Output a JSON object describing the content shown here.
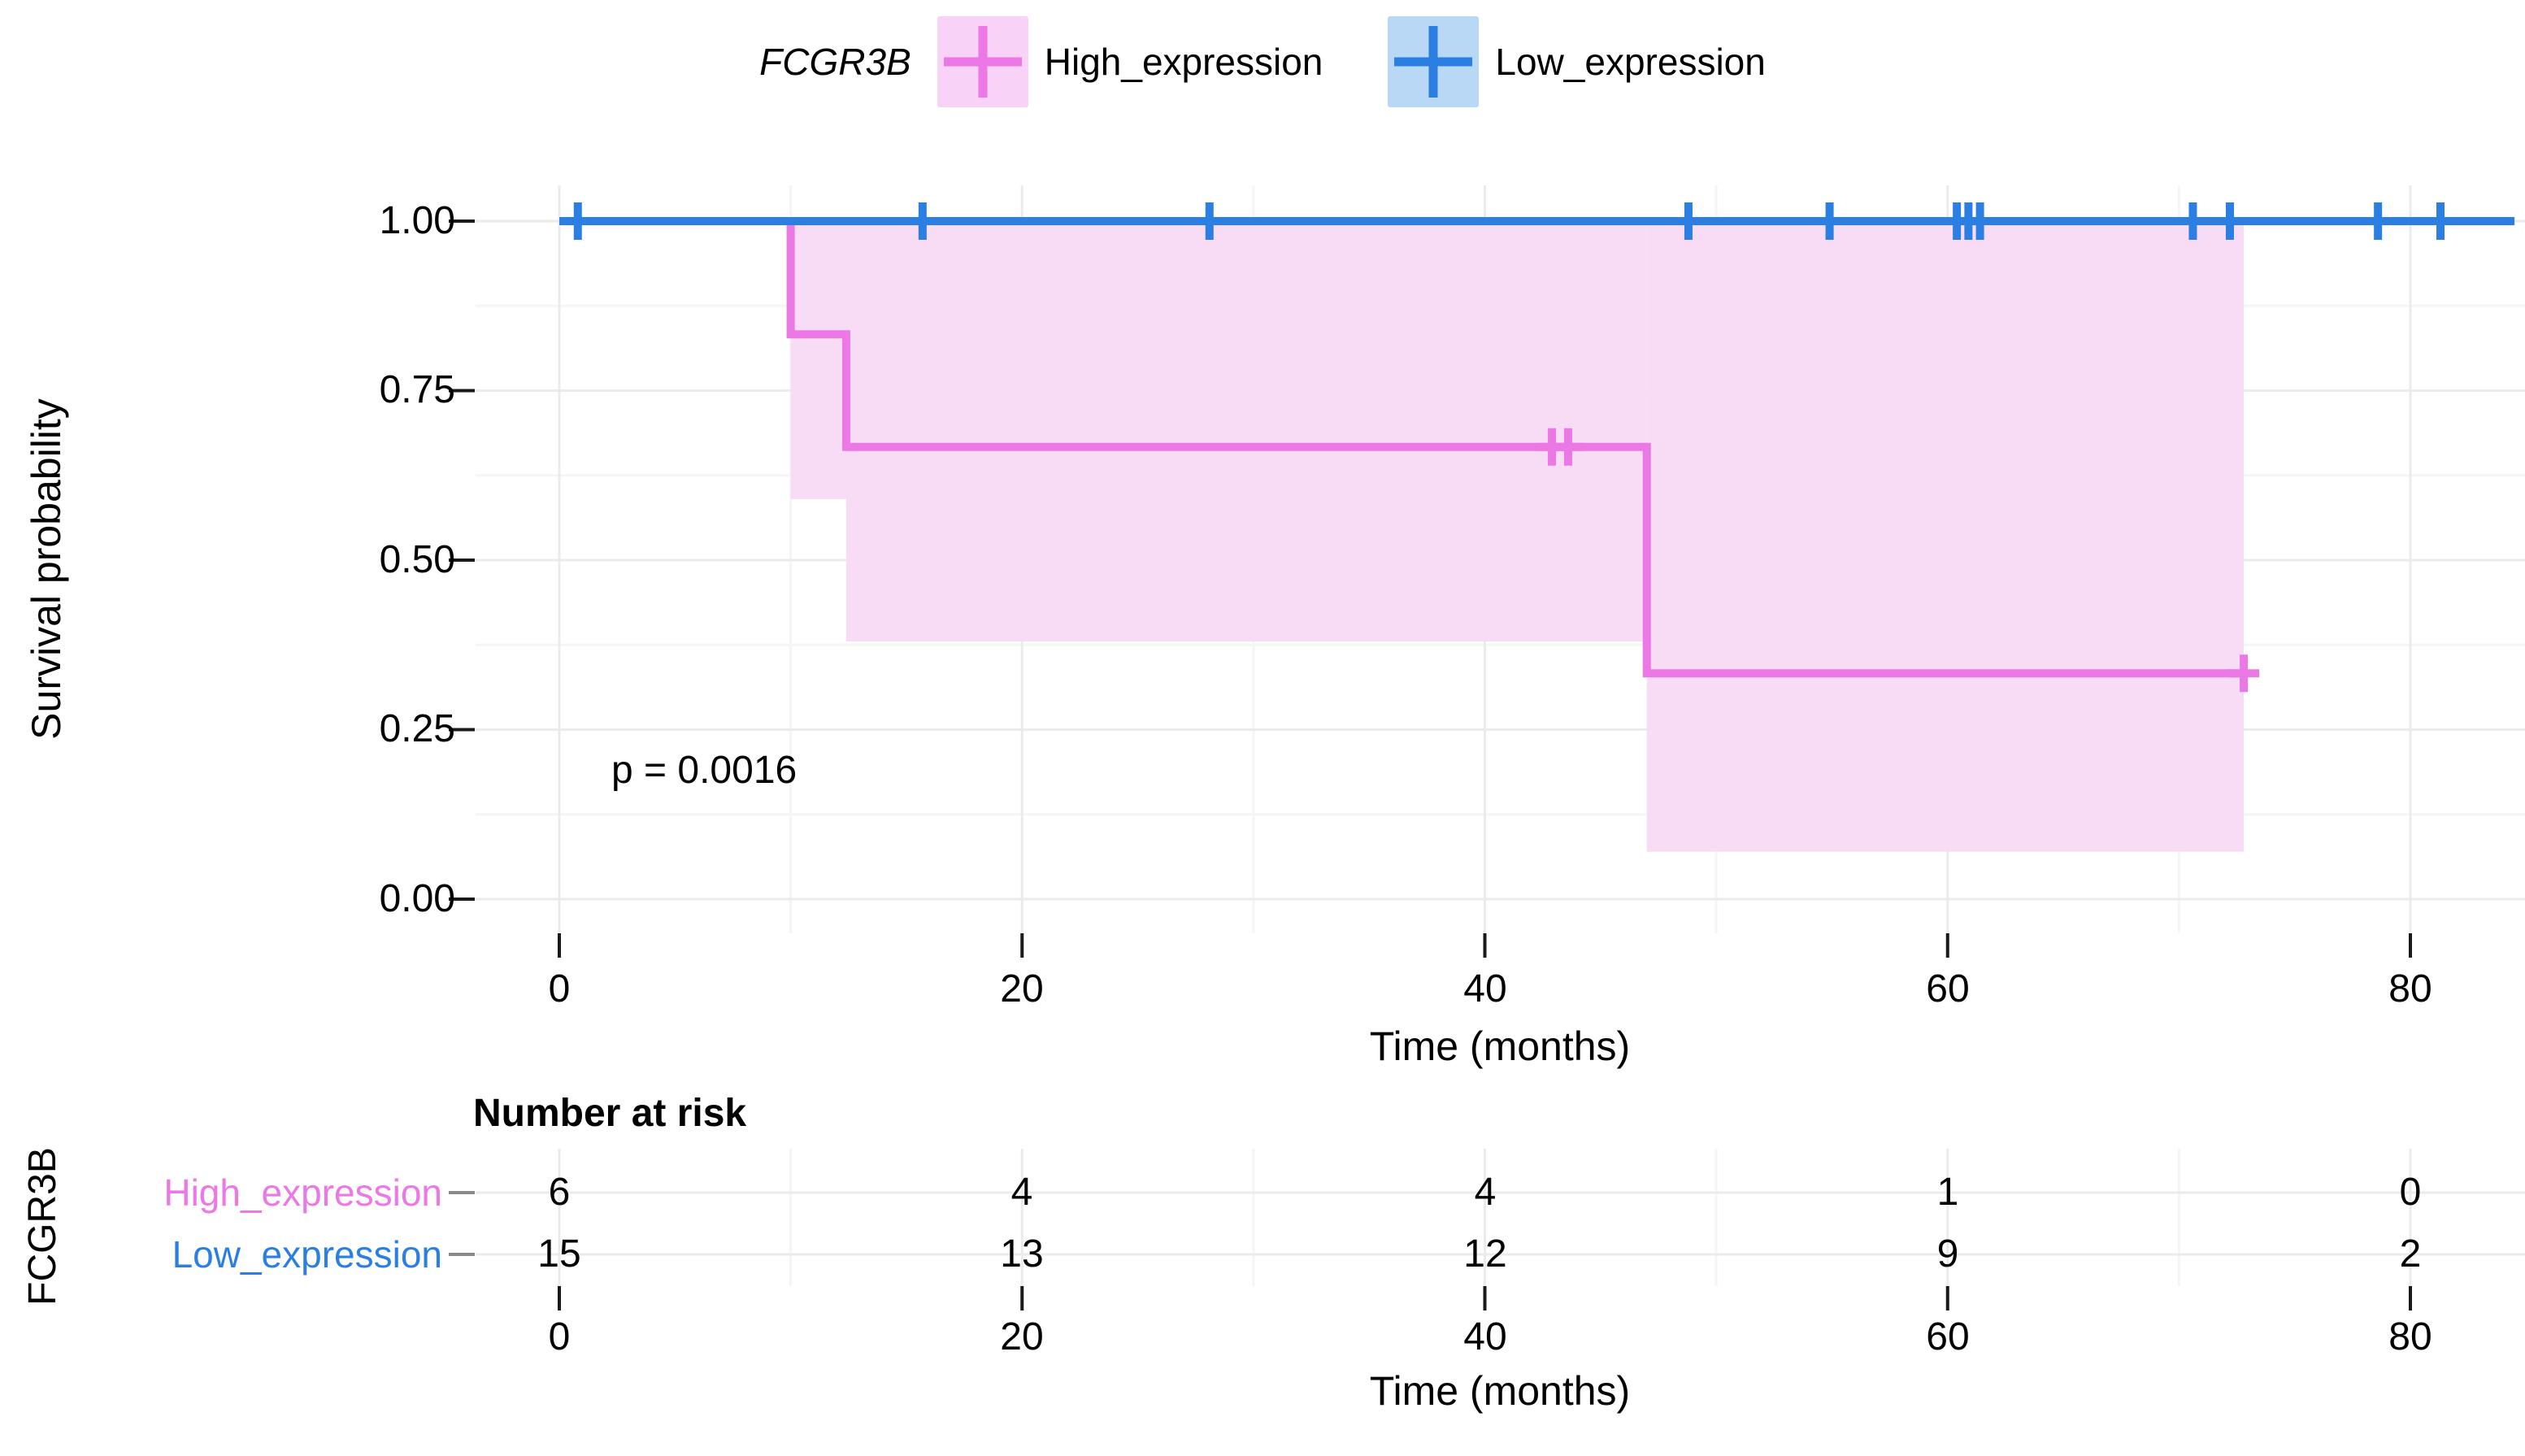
{
  "figure": {
    "legend": {
      "title": "FCGR3B",
      "items": [
        {
          "label": "High_expression",
          "line_color": "#EC78E6",
          "key_fill": "#F9D2F7"
        },
        {
          "label": "Low_expression",
          "line_color": "#2B7FE3",
          "key_fill": "#B9D8F5"
        }
      ]
    },
    "p_label": "p = 0.0016",
    "y_axis": {
      "title": "Survival probability",
      "ticks": [
        "1.00",
        "0.75",
        "0.50",
        "0.25",
        "0.00"
      ]
    },
    "x_axis": {
      "title": "Time (months)",
      "ticks": [
        "0",
        "20",
        "40",
        "60",
        "80"
      ]
    },
    "risk_table": {
      "title": "Number at risk",
      "group_axis_label": "FCGR3B",
      "rows": [
        {
          "label": "High_expression",
          "values": [
            "6",
            "4",
            "4",
            "1",
            "0"
          ]
        },
        {
          "label": "Low_expression",
          "values": [
            "15",
            "13",
            "12",
            "9",
            "2"
          ]
        }
      ],
      "x_axis": {
        "title": "Time (months)",
        "ticks": [
          "0",
          "20",
          "40",
          "60",
          "80"
        ]
      }
    },
    "colors": {
      "high_line": "#EC78E6",
      "high_band": "#F8DBF4",
      "low_line": "#2B7FE3",
      "low_key": "#B9D8F5",
      "grid_major": "#EBEBEB",
      "grid_minor": "#F5F5F5",
      "tick_mark": "#1a1a1a"
    }
  },
  "chart_data": {
    "type": "line",
    "subtype": "kaplan-meier-step",
    "title": "",
    "xlabel": "Time (months)",
    "ylabel": "Survival probability",
    "xlim": [
      0,
      84.5
    ],
    "ylim": [
      0,
      1
    ],
    "x_ticks": [
      0,
      20,
      40,
      60,
      80
    ],
    "y_ticks": [
      0,
      0.25,
      0.5,
      0.75,
      1.0
    ],
    "grid": "on",
    "legend_position": "top",
    "legend_title": "FCGR3B",
    "p_value_annotation": {
      "text": "p = 0.0016",
      "x": 8,
      "y": 0.21
    },
    "series": [
      {
        "name": "High_expression",
        "color": "#EC78E6",
        "ci_fill": "#F8DBF4",
        "steps": [
          [
            0,
            1.0
          ],
          [
            10,
            1.0
          ],
          [
            10,
            0.833
          ],
          [
            12.4,
            0.833
          ],
          [
            12.4,
            0.667
          ],
          [
            47,
            0.667
          ],
          [
            47,
            0.333
          ],
          [
            72.8,
            0.333
          ]
        ],
        "censors": [
          [
            42.9,
            0.667
          ],
          [
            43.6,
            0.667
          ],
          [
            72.8,
            0.333
          ]
        ],
        "ci_segments": [
          {
            "x0": 10,
            "x1": 12.4,
            "lower": 0.59,
            "upper": 1.0
          },
          {
            "x0": 12.4,
            "x1": 47,
            "lower": 0.38,
            "upper": 1.0
          },
          {
            "x0": 47,
            "x1": 72.8,
            "lower": 0.07,
            "upper": 1.0
          }
        ]
      },
      {
        "name": "Low_expression",
        "color": "#2B7FE3",
        "ci_fill": "#B9D8F5",
        "steps": [
          [
            0,
            1.0
          ],
          [
            84.5,
            1.0
          ]
        ],
        "censors": [
          [
            0.8,
            1.0
          ],
          [
            15.7,
            1.0
          ],
          [
            28.1,
            1.0
          ],
          [
            48.8,
            1.0
          ],
          [
            54.9,
            1.0
          ],
          [
            60.4,
            1.0
          ],
          [
            60.9,
            1.0
          ],
          [
            61.4,
            1.0
          ],
          [
            70.6,
            1.0
          ],
          [
            72.2,
            1.0
          ],
          [
            78.6,
            1.0
          ],
          [
            81.3,
            1.0
          ]
        ],
        "ci_segments": []
      }
    ],
    "risk_table": {
      "title": "Number at risk",
      "times": [
        0,
        20,
        40,
        60,
        80
      ],
      "rows": [
        {
          "name": "High_expression",
          "values": [
            6,
            4,
            4,
            1,
            0
          ]
        },
        {
          "name": "Low_expression",
          "values": [
            15,
            13,
            12,
            9,
            2
          ]
        }
      ]
    }
  }
}
